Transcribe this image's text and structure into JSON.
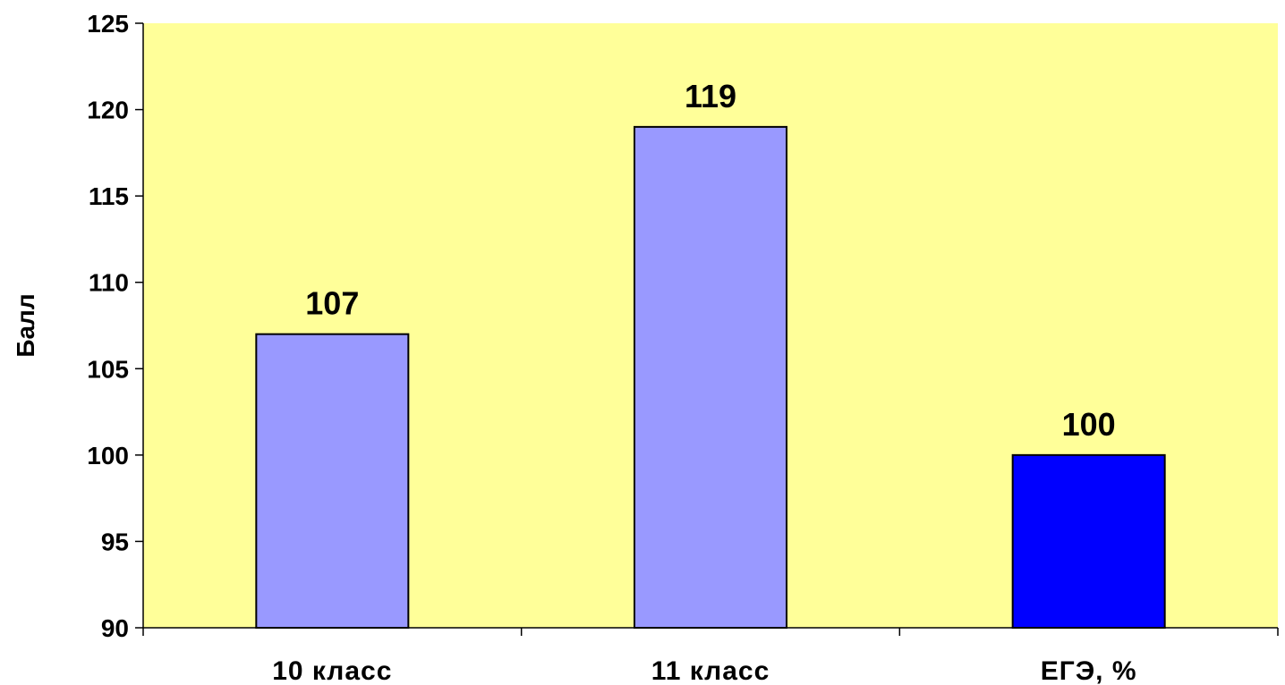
{
  "chart_data": {
    "type": "bar",
    "title": "",
    "xlabel": "",
    "ylabel": "Балл",
    "categories": [
      "10 класс",
      "11 класс",
      "ЕГЭ, %"
    ],
    "values": [
      107,
      119,
      100
    ],
    "data_labels": [
      "107",
      "119",
      "100"
    ],
    "ylim": [
      90,
      125
    ],
    "yticks": [
      90,
      95,
      100,
      105,
      110,
      115,
      120,
      125
    ],
    "grid": false,
    "legend": "none",
    "plot_background": "#FFFF99",
    "bar_colors": [
      "#9999FF",
      "#9999FF",
      "#0000FF"
    ],
    "bar_outline": "#000000"
  }
}
